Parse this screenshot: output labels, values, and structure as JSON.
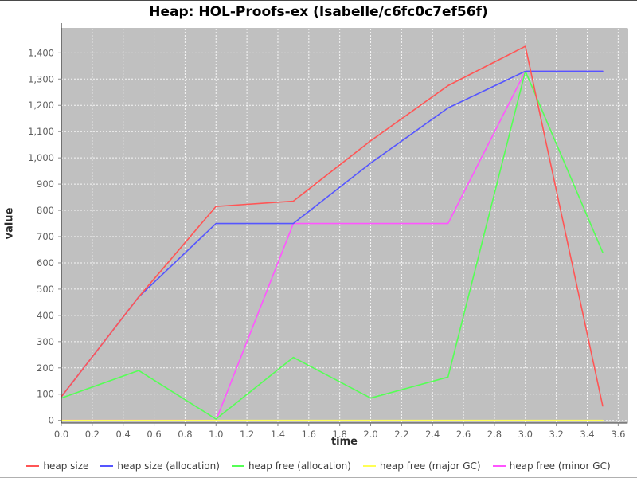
{
  "window": {
    "title": "Heap: HOL-Proofs-ex (Isabelle/c6fc0c7ef56f)"
  },
  "chart_data": {
    "type": "line",
    "title": "Heap: HOL-Proofs-ex (Isabelle/c6fc0c7ef56f)",
    "xlabel": "time",
    "ylabel": "value",
    "x": [
      0,
      0.5,
      1.0,
      1.5,
      2.0,
      2.5,
      3.0,
      3.5
    ],
    "series": [
      {
        "name": "heap size",
        "color": "#ff5555",
        "values": [
          90,
          470,
          815,
          835,
          1065,
          1275,
          1425,
          55
        ]
      },
      {
        "name": "heap size (allocation)",
        "color": "#5555ff",
        "values": [
          90,
          470,
          750,
          750,
          980,
          1190,
          1330,
          1330
        ]
      },
      {
        "name": "heap free (allocation)",
        "color": "#55ff55",
        "values": [
          85,
          190,
          5,
          240,
          85,
          165,
          1330,
          640
        ]
      },
      {
        "name": "heap free (major GC)",
        "color": "#ffff55",
        "values": [
          0,
          0,
          0,
          0,
          0,
          0,
          0,
          0
        ]
      },
      {
        "name": "heap free (minor GC)",
        "color": "#ff55ff",
        "values": [
          0,
          0,
          0,
          750,
          750,
          750,
          1330,
          1330
        ]
      }
    ],
    "xlim": [
      0,
      3.66
    ],
    "ylim": [
      -10,
      1492
    ],
    "xticks": {
      "values": [
        0,
        0.2,
        0.4,
        0.6,
        0.8,
        1.0,
        1.2,
        1.4,
        1.6,
        1.8,
        2.0,
        2.2,
        2.4,
        2.6,
        2.8,
        3.0,
        3.2,
        3.4,
        3.6
      ],
      "labels": [
        "0.0",
        "0.2",
        "0.4",
        "0.6",
        "0.8",
        "1.0",
        "1.2",
        "1.4",
        "1.6",
        "1.8",
        "2.0",
        "2.2",
        "2.4",
        "2.6",
        "2.8",
        "3.0",
        "3.2",
        "3.4",
        "3.6"
      ]
    },
    "yticks": {
      "values": [
        0,
        100,
        200,
        300,
        400,
        500,
        600,
        700,
        800,
        900,
        1000,
        1100,
        1200,
        1300,
        1400
      ],
      "labels": [
        "0",
        "100",
        "200",
        "300",
        "400",
        "500",
        "600",
        "700",
        "800",
        "900",
        "1,000",
        "1,100",
        "1,200",
        "1,300",
        "1,400"
      ]
    },
    "grid": true,
    "legend_position": "bottom",
    "plot_bg": "#c0c0c0",
    "grid_color": "#ffffff",
    "border_color": "#808080",
    "axis_line_color": "#3d3d3d",
    "tick_color": "#8a8a8a",
    "tick_label_color": "#5e5e5e"
  }
}
